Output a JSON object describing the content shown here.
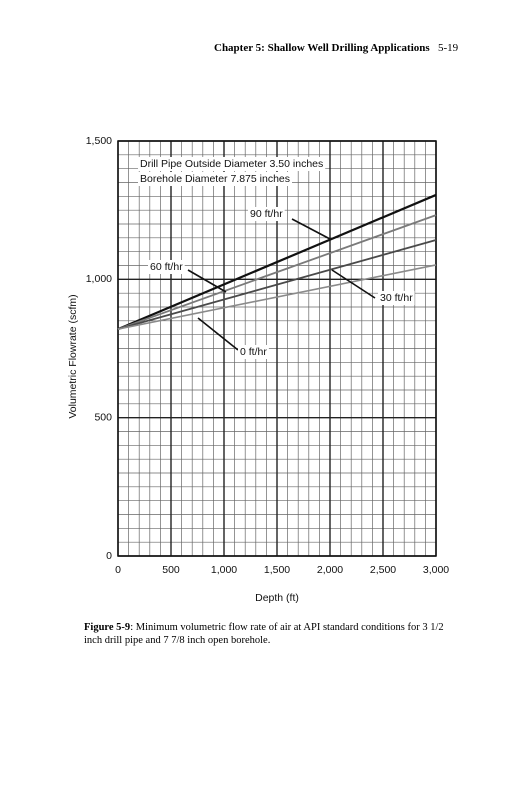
{
  "header": {
    "chapter": "Chapter 5: Shallow Well Drilling Applications",
    "page": "5-19"
  },
  "chart_data": {
    "type": "line",
    "xlabel": "Depth (ft)",
    "ylabel": "Volumetric Flowrate (scfm)",
    "annotations": [
      "Drill Pipe Outside Diameter 3.50 inches",
      "Borehole Diameter 7.875 inches"
    ],
    "x": [
      0,
      3000
    ],
    "series": [
      {
        "name": "90 ft/hr",
        "color": "#111111",
        "values": [
          820,
          1305
        ]
      },
      {
        "name": "60 ft/hr",
        "color": "#7a7a7a",
        "values": [
          820,
          1232
        ]
      },
      {
        "name": "30 ft/hr",
        "color": "#4a4a4a",
        "values": [
          820,
          1142
        ]
      },
      {
        "name": "0 ft/hr",
        "color": "#8a8a8a",
        "values": [
          820,
          1052
        ]
      }
    ],
    "xlim": [
      0,
      3000
    ],
    "xticks": [
      0,
      500,
      {
        "value": 1000,
        "label": "1,000"
      },
      {
        "value": 1500,
        "label": "1,500"
      },
      {
        "value": 2000,
        "label": "2,000"
      },
      {
        "value": 2500,
        "label": "2,500"
      },
      {
        "value": 3000,
        "label": "3,000"
      }
    ],
    "ylim": [
      0,
      1500
    ],
    "yticks": [
      0,
      500,
      {
        "value": 1000,
        "label": "1,000"
      },
      {
        "value": 1500,
        "label": "1,500"
      }
    ],
    "grid": true
  },
  "caption": {
    "label": "Figure 5-9",
    "text": ": Minimum volumetric flow rate of air at API standard conditions for 3 1/2 inch drill pipe and 7 7/8 inch open borehole."
  }
}
